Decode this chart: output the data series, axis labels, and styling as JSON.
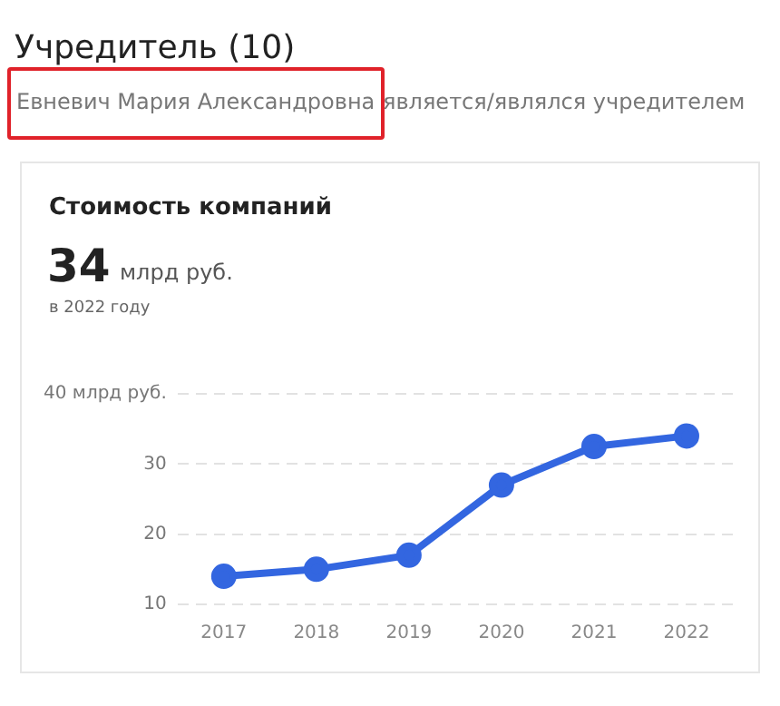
{
  "chart_data": {
    "type": "line",
    "title": "Стоимость компаний",
    "annotations": [
      "Учредитель (10)",
      "Евневич Мария Александровна",
      "является/являлся учредителем",
      "34",
      "млрд руб.",
      "в 2022 году"
    ],
    "categories": [
      "2017",
      "2018",
      "2019",
      "2020",
      "2021",
      "2022"
    ],
    "series": [
      {
        "color": "#3366e0",
        "values": [
          14,
          15,
          17,
          27,
          32.5,
          34
        ]
      }
    ],
    "ylim": [
      10,
      40
    ],
    "yticks": [
      10,
      20,
      30,
      {
        "value": 40,
        "label": "40 млрд руб."
      }
    ],
    "grid": "y",
    "legend": false,
    "marker": "circle",
    "line_style": "solid"
  }
}
